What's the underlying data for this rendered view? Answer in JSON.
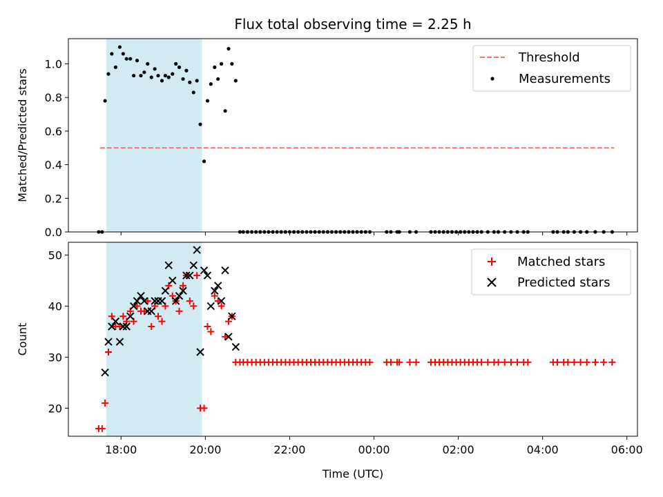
{
  "chart_data": [
    {
      "type": "scatter",
      "title": "Flux total observing time = 2.25 h",
      "xlabel": "",
      "ylabel": "Matched/Predicted stars",
      "x_unit": "hours since 00:00 UTC of first night",
      "xlim": [
        16.75,
        30.25
      ],
      "ylim": [
        0,
        1.15
      ],
      "yticks": [
        0.0,
        0.2,
        0.4,
        0.6,
        0.8,
        1.0
      ],
      "ytick_labels": [
        "0.0",
        "0.2",
        "0.4",
        "0.6",
        "0.8",
        "1.0"
      ],
      "shaded_interval": {
        "start": 17.65,
        "end": 19.92,
        "color": "#add8e6"
      },
      "threshold": {
        "name": "Threshold",
        "value": 0.5,
        "x_start": 17.5,
        "x_end": 29.7,
        "color": "#ff7070"
      },
      "legend": {
        "position": "top-right",
        "entries": [
          "Threshold",
          "Measurements"
        ]
      },
      "series": [
        {
          "name": "Measurements",
          "color": "#000000",
          "x": [
            17.47,
            17.55,
            17.62,
            17.7,
            17.78,
            17.87,
            17.97,
            18.05,
            18.13,
            18.22,
            18.3,
            18.38,
            18.47,
            18.55,
            18.63,
            18.72,
            18.8,
            18.88,
            18.97,
            19.05,
            19.13,
            19.22,
            19.3,
            19.38,
            19.47,
            19.55,
            19.63,
            19.72,
            19.8,
            19.88,
            19.97,
            20.05,
            20.13,
            20.22,
            20.3,
            20.38,
            20.47,
            20.55,
            20.63,
            20.72,
            20.82,
            20.9,
            21.0,
            21.1,
            21.2,
            21.3,
            21.4,
            21.5,
            21.6,
            21.7,
            21.8,
            21.9,
            22.0,
            22.1,
            22.2,
            22.3,
            22.4,
            22.5,
            22.6,
            22.7,
            22.8,
            22.9,
            23.0,
            23.1,
            23.2,
            23.3,
            23.4,
            23.5,
            23.6,
            23.7,
            23.8,
            23.9,
            24.3,
            24.4,
            24.55,
            24.6,
            24.85,
            25.0,
            25.35,
            25.45,
            25.55,
            25.65,
            25.75,
            25.85,
            25.95,
            26.05,
            26.15,
            26.25,
            26.35,
            26.45,
            26.55,
            26.7,
            26.85,
            26.95,
            27.1,
            27.25,
            27.4,
            27.55,
            27.65,
            28.25,
            28.35,
            28.5,
            28.6,
            28.75,
            28.9,
            29.05,
            29.25,
            29.45,
            29.65
          ],
          "y": [
            0.0,
            0.0,
            0.78,
            0.94,
            1.06,
            0.98,
            1.1,
            1.06,
            1.03,
            1.03,
            0.93,
            1.02,
            0.93,
            0.95,
            1.0,
            0.92,
            0.97,
            0.93,
            0.9,
            0.93,
            0.92,
            0.94,
            1.0,
            0.98,
            0.91,
            0.96,
            0.89,
            0.83,
            0.9,
            0.64,
            0.42,
            0.78,
            0.88,
            0.98,
            0.91,
            1.0,
            0.72,
            1.09,
            1.0,
            0.9,
            0.0,
            0.0,
            0.0,
            0.0,
            0.0,
            0.0,
            0.0,
            0.0,
            0.0,
            0.0,
            0.0,
            0.0,
            0.0,
            0.0,
            0.0,
            0.0,
            0.0,
            0.0,
            0.0,
            0.0,
            0.0,
            0.0,
            0.0,
            0.0,
            0.0,
            0.0,
            0.0,
            0.0,
            0.0,
            0.0,
            0.0,
            0.0,
            0.0,
            0.0,
            0.0,
            0.0,
            0.0,
            0.0,
            0.0,
            0.0,
            0.0,
            0.0,
            0.0,
            0.0,
            0.0,
            0.0,
            0.0,
            0.0,
            0.0,
            0.0,
            0.0,
            0.0,
            0.0,
            0.0,
            0.0,
            0.0,
            0.0,
            0.0,
            0.0,
            0.0,
            0.0,
            0.0,
            0.0,
            0.0,
            0.0,
            0.0,
            0.0,
            0.0,
            0.0
          ]
        }
      ]
    },
    {
      "type": "scatter",
      "title": "",
      "xlabel": "Time (UTC)",
      "ylabel": "Count",
      "x_unit": "hours since 00:00 UTC of first night",
      "xlim": [
        16.75,
        30.25
      ],
      "ylim": [
        14.5,
        52.5
      ],
      "xticks": [
        18,
        20,
        22,
        24,
        26,
        28,
        30
      ],
      "xtick_labels": [
        "18:00",
        "20:00",
        "22:00",
        "00:00",
        "02:00",
        "04:00",
        "06:00"
      ],
      "yticks": [
        20,
        30,
        40,
        50
      ],
      "ytick_labels": [
        "20",
        "30",
        "40",
        "50"
      ],
      "shaded_interval": {
        "start": 17.65,
        "end": 19.92,
        "color": "#add8e6"
      },
      "legend": {
        "position": "top-right",
        "entries": [
          "Matched stars",
          "Predicted stars"
        ]
      },
      "series": [
        {
          "name": "Matched stars",
          "marker": "plus",
          "color": "#ff0000",
          "x": [
            17.47,
            17.55,
            17.62,
            17.7,
            17.78,
            17.87,
            17.97,
            18.05,
            18.13,
            18.22,
            18.3,
            18.38,
            18.47,
            18.55,
            18.63,
            18.72,
            18.8,
            18.88,
            18.97,
            19.05,
            19.13,
            19.22,
            19.3,
            19.38,
            19.47,
            19.55,
            19.63,
            19.72,
            19.8,
            19.88,
            19.97,
            20.05,
            20.13,
            20.22,
            20.3,
            20.38,
            20.47,
            20.55,
            20.63,
            20.72,
            20.82,
            20.9,
            21.0,
            21.1,
            21.2,
            21.3,
            21.4,
            21.5,
            21.6,
            21.7,
            21.8,
            21.9,
            22.0,
            22.1,
            22.2,
            22.3,
            22.4,
            22.5,
            22.6,
            22.7,
            22.8,
            22.9,
            23.0,
            23.1,
            23.2,
            23.3,
            23.4,
            23.5,
            23.6,
            23.7,
            23.8,
            23.9,
            24.3,
            24.4,
            24.55,
            24.6,
            24.85,
            25.0,
            25.35,
            25.45,
            25.55,
            25.65,
            25.75,
            25.85,
            25.95,
            26.05,
            26.15,
            26.25,
            26.35,
            26.45,
            26.55,
            26.7,
            26.85,
            26.95,
            27.1,
            27.25,
            27.4,
            27.55,
            27.65,
            28.25,
            28.35,
            28.5,
            28.6,
            28.75,
            28.9,
            29.05,
            29.25,
            29.45,
            29.65
          ],
          "y": [
            16,
            16,
            21,
            31,
            38,
            36,
            36,
            38,
            37,
            39,
            37,
            40,
            39,
            39,
            41,
            36,
            40,
            38,
            37,
            40,
            44,
            42,
            41,
            39,
            44,
            46,
            41,
            40,
            46,
            20,
            20,
            36,
            35,
            42,
            41,
            40,
            34,
            37,
            38,
            29,
            29,
            29,
            29,
            29,
            29,
            29,
            29,
            29,
            29,
            29,
            29,
            29,
            29,
            29,
            29,
            29,
            29,
            29,
            29,
            29,
            29,
            29,
            29,
            29,
            29,
            29,
            29,
            29,
            29,
            29,
            29,
            29,
            29,
            29,
            29,
            29,
            29,
            29,
            29,
            29,
            29,
            29,
            29,
            29,
            29,
            29,
            29,
            29,
            29,
            29,
            29,
            29,
            29,
            29,
            29,
            29,
            29,
            29,
            29,
            29,
            29,
            29,
            29,
            29,
            29,
            29,
            29,
            29,
            29
          ]
        },
        {
          "name": "Predicted stars",
          "marker": "x",
          "color": "#000000",
          "x": [
            17.62,
            17.7,
            17.78,
            17.87,
            17.97,
            18.05,
            18.13,
            18.22,
            18.3,
            18.38,
            18.47,
            18.55,
            18.63,
            18.72,
            18.8,
            18.88,
            18.97,
            19.05,
            19.13,
            19.22,
            19.3,
            19.38,
            19.47,
            19.55,
            19.63,
            19.72,
            19.8,
            19.88,
            19.97,
            20.05,
            20.13,
            20.22,
            20.3,
            20.38,
            20.47,
            20.55,
            20.63,
            20.72
          ],
          "y": [
            27,
            33,
            36,
            37,
            33,
            36,
            36,
            38,
            40,
            41,
            42,
            41,
            39,
            39,
            41,
            41,
            41,
            43,
            48,
            45,
            41,
            42,
            43,
            46,
            46,
            48,
            51,
            31,
            47,
            46,
            40,
            43,
            44,
            41,
            47,
            34,
            38,
            32
          ]
        }
      ]
    }
  ]
}
